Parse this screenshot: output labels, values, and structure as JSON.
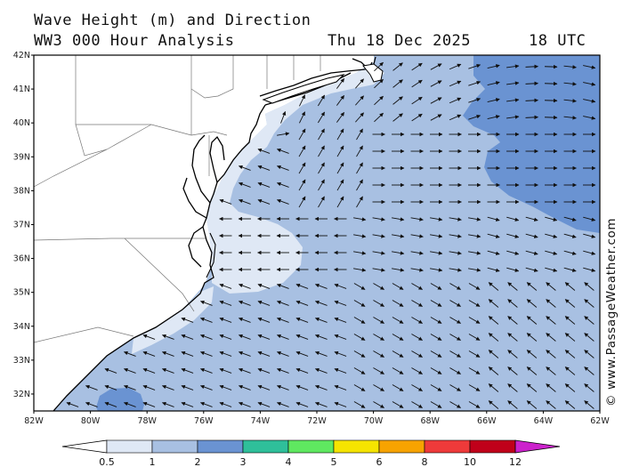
{
  "header": {
    "title": "Wave Height (m) and Direction",
    "model": "WW3 000 Hour Analysis",
    "date": "Thu 18 Dec 2025",
    "time": "18 UTC"
  },
  "credit": "© www.PassageWeather.com",
  "axes": {
    "lat_labels": [
      "42N",
      "41N",
      "40N",
      "39N",
      "38N",
      "37N",
      "36N",
      "35N",
      "34N",
      "33N",
      "32N"
    ],
    "lon_labels": [
      "82W",
      "80W",
      "78W",
      "76W",
      "74W",
      "72W",
      "70W",
      "68W",
      "66W",
      "64W",
      "62W"
    ],
    "lat_range": [
      31.5,
      42
    ],
    "lon_range": [
      -82,
      -62
    ]
  },
  "legend": {
    "labels": [
      "0.5",
      "1",
      "2",
      "3",
      "4",
      "5",
      "6",
      "8",
      "10",
      "12"
    ],
    "unit": "m",
    "colors": {
      "lt05": "#ffffff",
      "b05_1": "#dfe8f5",
      "b1_2": "#a8c0e2",
      "b2_3": "#6a93d2",
      "b3_4": "#2fbf9a",
      "b4_5": "#5fe860",
      "b5_6": "#f5e400",
      "b6_8": "#f7a300",
      "b8_10": "#ee3a3a",
      "b10_12": "#c0001a",
      "gt12": "#cc22cc"
    }
  }
}
